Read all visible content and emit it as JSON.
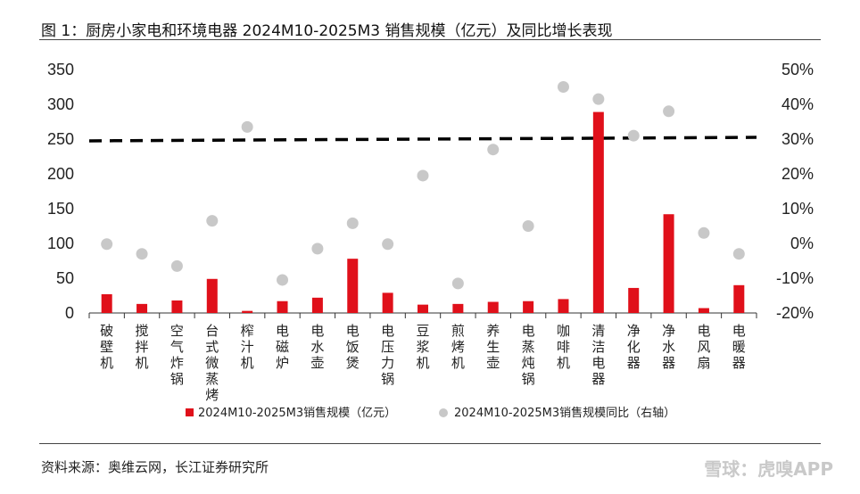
{
  "title": "图  1：厨房小家电和环境电器 2024M10-2025M3 销售规模（亿元）及同比增长表现",
  "source": "资料来源：奥维云网，长江证券研究所",
  "watermark": "雪球：虎嗅APP",
  "chart_data": {
    "type": "bar",
    "categories": [
      "破壁机",
      "搅拌机",
      "空气炸锅",
      "台式微蒸烤",
      "榨汁机",
      "电磁炉",
      "电水壶",
      "电饭煲",
      "电压力锅",
      "豆浆机",
      "煎烤机",
      "养生壶",
      "电蒸炖锅",
      "咖啡机",
      "清洁电器",
      "净化器",
      "净水器",
      "电风扇",
      "电暖器"
    ],
    "series": [
      {
        "name": "2024M10-2025M3销售规模（亿元）",
        "axis": "left",
        "color": "#e0101a",
        "values": [
          27,
          13,
          18,
          49,
          3,
          17,
          22,
          78,
          29,
          12,
          13,
          16,
          17,
          20,
          289,
          36,
          142,
          7,
          40
        ]
      },
      {
        "name": "2024M10-2025M3销售规模同比（右轴）",
        "axis": "right",
        "color": "#c8c8c8",
        "type": "scatter",
        "values": [
          -0.2,
          -3.0,
          -6.5,
          6.5,
          33.5,
          -10.5,
          -1.5,
          5.8,
          -0.2,
          19.5,
          -11.5,
          27.0,
          5.0,
          45.0,
          41.5,
          31.0,
          38.0,
          3.0,
          -3.0
        ]
      }
    ],
    "reference_line": {
      "axis": "right",
      "style": "dashed",
      "color": "#000000",
      "start": 29.5,
      "end": 30.5
    },
    "left_axis": {
      "ylim": [
        0,
        350
      ],
      "ticks": [
        "0",
        "50",
        "100",
        "150",
        "200",
        "250",
        "300",
        "350"
      ]
    },
    "right_axis": {
      "ylim": [
        -20,
        50
      ],
      "ticks": [
        "-20%",
        "-10%",
        "0%",
        "10%",
        "20%",
        "30%",
        "40%",
        "50%"
      ]
    },
    "grid": false,
    "legend_position": "bottom"
  }
}
